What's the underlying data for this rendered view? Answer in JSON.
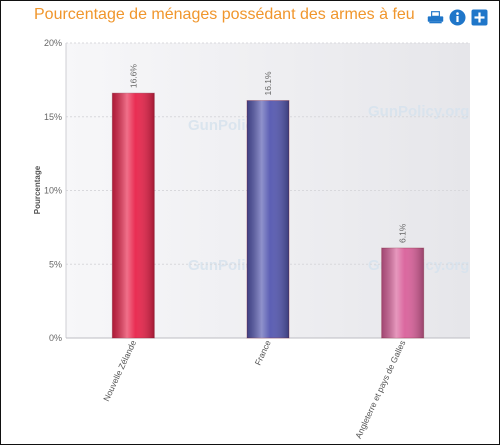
{
  "title": "Pourcentage de ménages possédant des armes à feu",
  "toolbar": {
    "icons": [
      "printer-icon",
      "info-icon",
      "plus-icon"
    ]
  },
  "watermark": "GunPolicy.org",
  "chart_data": {
    "type": "bar",
    "title": "Pourcentage de ménages possédant des armes à feu",
    "ylabel": "Pourcentage",
    "xlabel": "",
    "ylim": [
      0,
      20
    ],
    "yticks": [
      {
        "value": 0,
        "label": "0%"
      },
      {
        "value": 5,
        "label": "5%"
      },
      {
        "value": 10,
        "label": "10%"
      },
      {
        "value": 15,
        "label": "15%"
      },
      {
        "value": 20,
        "label": "20%"
      }
    ],
    "categories": [
      "Nouvelle Zélande",
      "France",
      "Angleterre et pays de Galles"
    ],
    "values": [
      16.6,
      16.1,
      6.1
    ],
    "value_labels": [
      "16.6%",
      "16.1%",
      "6.1%"
    ],
    "colors": [
      "#e8234a",
      "#5457b0",
      "#d9609a"
    ],
    "grid": true,
    "legend": "none"
  }
}
